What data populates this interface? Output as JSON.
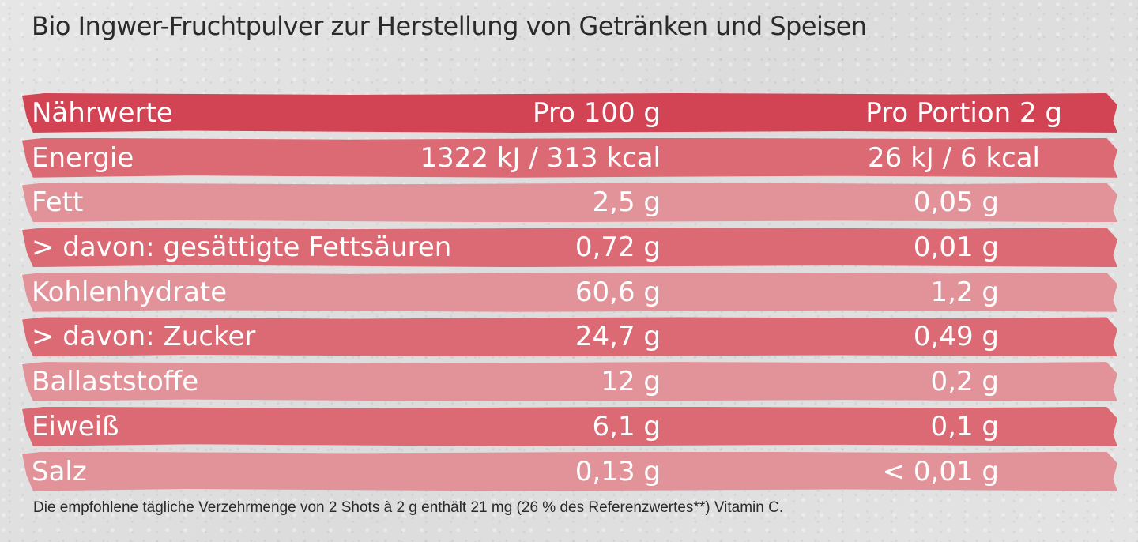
{
  "title": "Bio Ingwer-Fruchtpulver zur Herstellung von Getränken und Speisen",
  "table": {
    "headers": [
      "Nährwerte",
      "Pro 100 g",
      "Pro Portion 2 g"
    ],
    "rows": [
      [
        "Energie",
        "1322 kJ / 313 kcal",
        "26 kJ / 6 kcal"
      ],
      [
        "Fett",
        "2,5 g",
        "0,05 g"
      ],
      [
        "> davon: gesättigte Fettsäuren",
        "0,72 g",
        "0,01 g"
      ],
      [
        "Kohlenhydrate",
        "60,6 g",
        "1,2 g"
      ],
      [
        "> davon: Zucker",
        "24,7 g",
        "0,49 g"
      ],
      [
        "Ballaststoffe",
        "12 g",
        "0,2 g"
      ],
      [
        "Eiweiß",
        "6,1 g",
        "0,1 g"
      ],
      [
        "Salz",
        "0,13 g",
        "< 0,01 g"
      ]
    ]
  },
  "footnote": "Die empfohlene tägliche Verzehrmenge von 2 Shots à 2 g enthält 21 mg (26 % des Referenzwertes**) Vitamin C.",
  "colors": {
    "header_band": "#d24453",
    "band_dark": "#dc6a74",
    "band_light": "#e2939a",
    "text_dark": "#2a2a2a"
  }
}
